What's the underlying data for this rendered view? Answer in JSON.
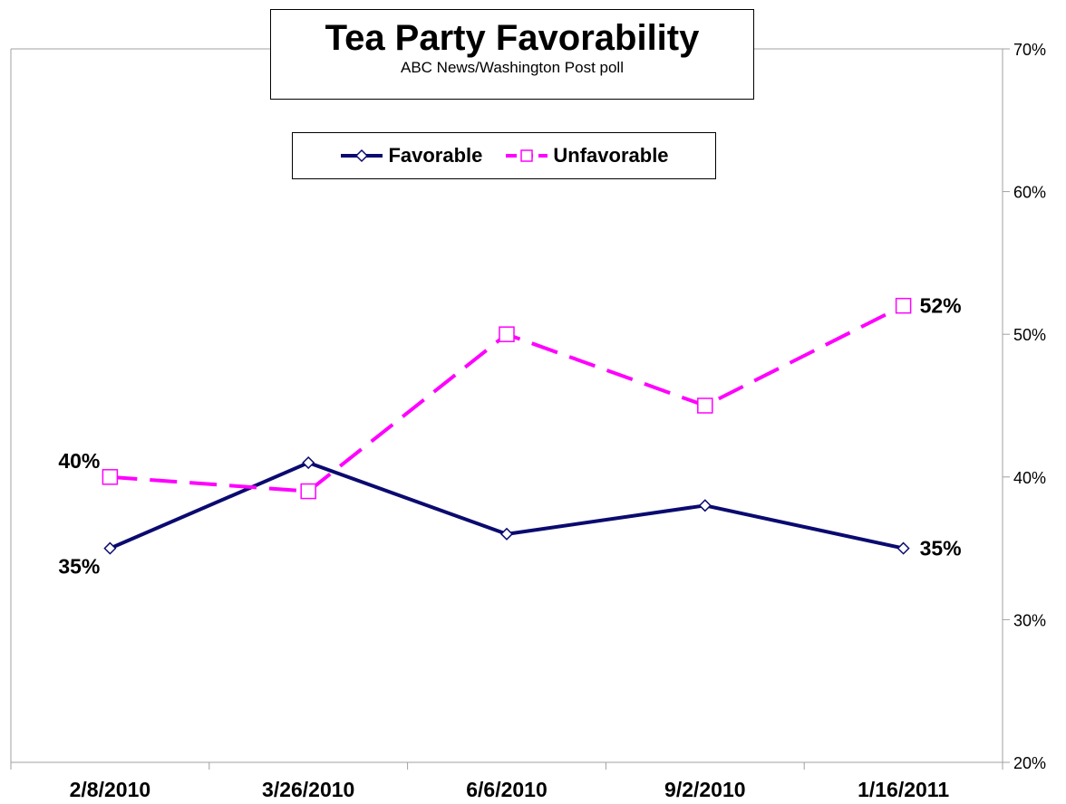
{
  "chart_data": {
    "type": "line",
    "title": "Tea Party Favorability",
    "subtitle": "ABC News/Washington Post poll",
    "categories": [
      "2/8/2010",
      "3/26/2010",
      "6/6/2010",
      "9/2/2010",
      "1/16/2011"
    ],
    "series": [
      {
        "name": "Favorable",
        "values": [
          35,
          41,
          36,
          38,
          35
        ],
        "color": "#0a0a70",
        "style": "solid",
        "marker": "diamond"
      },
      {
        "name": "Unfavorable",
        "values": [
          40,
          39,
          50,
          45,
          52
        ],
        "color": "#ff00ff",
        "style": "dashed",
        "marker": "square"
      }
    ],
    "data_labels": [
      {
        "series": 0,
        "index": 0,
        "text": "35%"
      },
      {
        "series": 0,
        "index": 4,
        "text": "35%"
      },
      {
        "series": 1,
        "index": 0,
        "text": "40%"
      },
      {
        "series": 1,
        "index": 4,
        "text": "52%"
      }
    ],
    "y_axis": {
      "position": "right",
      "ylim": [
        20,
        70
      ],
      "ticks": [
        20,
        30,
        40,
        50,
        60,
        70
      ],
      "tick_labels": [
        "20%",
        "30%",
        "40%",
        "50%",
        "60%",
        "70%"
      ]
    },
    "xlabel": "",
    "ylabel": "",
    "grid": false,
    "legend_position": "top-center"
  }
}
